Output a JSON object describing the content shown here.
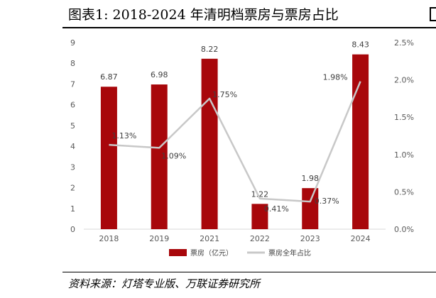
{
  "title": "图表1:   2018-2024 年清明档票房与票房占比",
  "source": "资料来源：灯塔专业版、万联证券研究所",
  "chart_data": {
    "type": "bar",
    "categories": [
      "2018",
      "2019",
      "2021",
      "2022",
      "2023",
      "2024"
    ],
    "series": [
      {
        "name": "票房（亿元）",
        "type": "bar",
        "axis": "left",
        "color": "#a8070b",
        "values": [
          6.87,
          6.98,
          8.22,
          1.22,
          1.98,
          8.43
        ],
        "labels": [
          "6.87",
          "6.98",
          "8.22",
          "1.22",
          "1.98",
          "8.43"
        ]
      },
      {
        "name": "票房全年占比",
        "type": "line",
        "axis": "right",
        "color": "#c8c8c8",
        "values": [
          1.13,
          1.09,
          1.75,
          0.41,
          0.37,
          1.98
        ],
        "labels": [
          "1.13%",
          "1.09%",
          "1.75%",
          "0.41%",
          "0.37%",
          "1.98%"
        ]
      }
    ],
    "y_left": {
      "min": 0,
      "max": 9,
      "ticks": [
        "0",
        "1",
        "2",
        "3",
        "4",
        "5",
        "6",
        "7",
        "8",
        "9"
      ]
    },
    "y_right": {
      "min": 0,
      "max": 2.5,
      "ticks": [
        "0.0%",
        "0.5%",
        "1.0%",
        "1.5%",
        "2.0%",
        "2.5%"
      ]
    },
    "grid": false,
    "legend": "bottom"
  }
}
